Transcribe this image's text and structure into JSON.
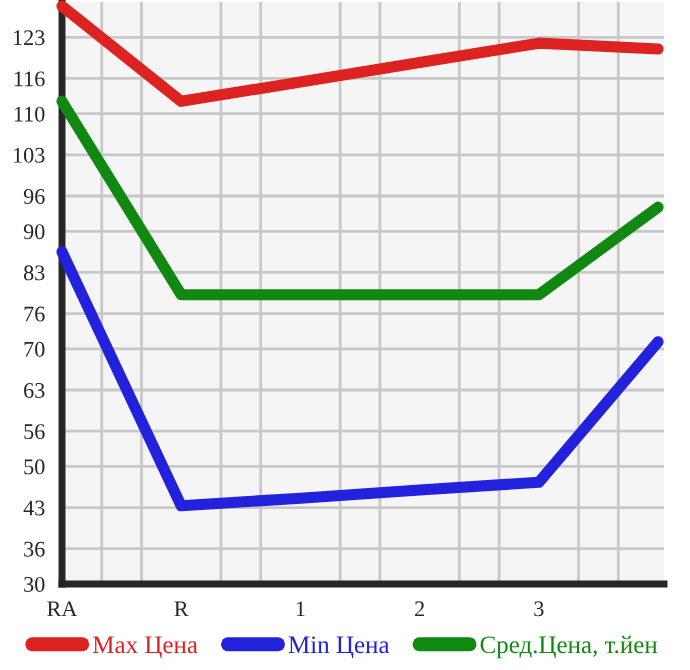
{
  "chart_data": {
    "type": "line",
    "categories": [
      "RA",
      "R",
      "1",
      "2",
      "3",
      null
    ],
    "series": [
      {
        "name": "Max Цена",
        "color": "#dd2222",
        "values": [
          128.3,
          112.1,
          115.4,
          118.7,
          122.0,
          121.0
        ]
      },
      {
        "name": "Min Цена",
        "color": "#2222dd",
        "values": [
          86.5,
          43.3,
          44.6,
          46.0,
          47.3,
          71.2
        ]
      },
      {
        "name": "Сред.Цена, т.йен",
        "color": "#118811",
        "values": [
          112.1,
          79.2,
          79.2,
          79.2,
          79.2,
          94.1
        ]
      }
    ],
    "ylim": [
      30,
      129
    ],
    "yticks": [
      30,
      36,
      43,
      50,
      56,
      63,
      70,
      76,
      83,
      90,
      96,
      103,
      110,
      116,
      123
    ],
    "grid": true,
    "legend": "bottom",
    "marker": "none",
    "line_style": "solid"
  }
}
